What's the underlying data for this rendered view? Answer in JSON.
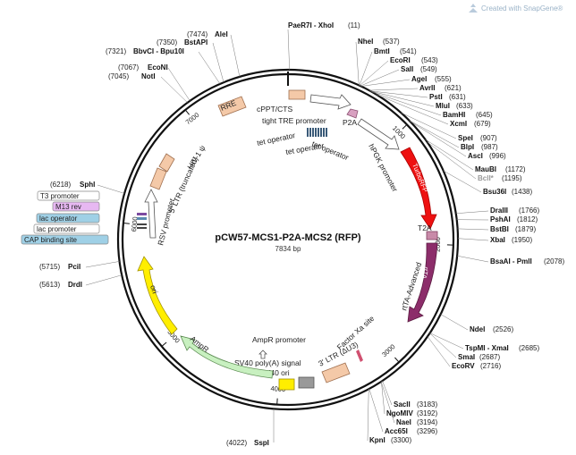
{
  "watermark": "Created with SnapGene®",
  "plasmid": {
    "name": "pCW57-MCS1-P2A-MCS2 (RFP)",
    "size_text": "7834 bp"
  },
  "ticks": [
    {
      "label": "1000",
      "pos": 1000
    },
    {
      "label": "2000",
      "pos": 2000
    },
    {
      "label": "3000",
      "pos": 3000
    },
    {
      "label": "4000",
      "pos": 4000
    },
    {
      "label": "5000",
      "pos": 5000
    },
    {
      "label": "6000",
      "pos": 6000
    },
    {
      "label": "7000",
      "pos": 7000
    }
  ],
  "features": [
    {
      "label": "cPPT/CTS",
      "color": "#f4c9a8"
    },
    {
      "label": "tight TRE promoter",
      "color": "#ffffff"
    },
    {
      "label": "tet operator",
      "color": "#3a5a78"
    },
    {
      "label": "tet operator",
      "color": "#3a5a78"
    },
    {
      "label": "tet operator",
      "color": "#3a5a78"
    },
    {
      "label": "P2A",
      "color": "#d8a0c0"
    },
    {
      "label": "hPGK promoter",
      "color": "#ffffff"
    },
    {
      "label": "TurboRFP",
      "color": "#ee1111"
    },
    {
      "label": "T2A",
      "color": "#c88aa8"
    },
    {
      "label": "rtTA-Advanced",
      "color": "#8c2d6a"
    },
    {
      "label": "Factor Xa site",
      "color": "#d05070"
    },
    {
      "label": "3' LTR (ΔU3)",
      "color": "#f4c9a8"
    },
    {
      "label": "SV40 ori",
      "color": "#999999"
    },
    {
      "label": "SV40 poly(A) signal",
      "color": "#ffee00"
    },
    {
      "label": "AmpR promoter",
      "color": "#ffffff"
    },
    {
      "label": "AmpR",
      "color": "#c8f0c0"
    },
    {
      "label": "ori",
      "color": "#ffee00"
    },
    {
      "label": "RSV promoter",
      "color": "#ffffff"
    },
    {
      "label": "5' LTR (truncated)",
      "color": "#f4c9a8"
    },
    {
      "label": "HIV-1 ψ",
      "color": "#f4c9a8"
    },
    {
      "label": "RRE",
      "color": "#f4c9a8"
    }
  ],
  "inner_texts": {
    "turbo": "TurboRFP",
    "rtta": "rtTA",
    "ori": "ori"
  },
  "sites": [
    {
      "name": "PaeR7I - XhoI",
      "pos": "(11)"
    },
    {
      "name": "NheI",
      "pos": "(537)"
    },
    {
      "name": "BmtI",
      "pos": "(541)"
    },
    {
      "name": "EcoRI",
      "pos": "(543)"
    },
    {
      "name": "SalI",
      "pos": "(549)"
    },
    {
      "name": "AgeI",
      "pos": "(555)"
    },
    {
      "name": "AvrII",
      "pos": "(621)"
    },
    {
      "name": "PstI",
      "pos": "(631)"
    },
    {
      "name": "MluI",
      "pos": "(633)"
    },
    {
      "name": "BamHI",
      "pos": "(645)"
    },
    {
      "name": "XcmI",
      "pos": "(679)"
    },
    {
      "name": "SpeI",
      "pos": "(907)"
    },
    {
      "name": "BlpI",
      "pos": "(987)"
    },
    {
      "name": "AscI",
      "pos": "(996)"
    },
    {
      "name": "MauBI",
      "pos": "(1172)"
    },
    {
      "name": "BclI*",
      "pos": "(1195)"
    },
    {
      "name": "Bsu36I",
      "pos": "(1438)"
    },
    {
      "name": "DraIII",
      "pos": "(1766)"
    },
    {
      "name": "PshAI",
      "pos": "(1812)"
    },
    {
      "name": "BstBI",
      "pos": "(1879)"
    },
    {
      "name": "XbaI",
      "pos": "(1950)"
    },
    {
      "name": "BsaAI - PmlI",
      "pos": "(2078)"
    },
    {
      "name": "NdeI",
      "pos": "(2526)"
    },
    {
      "name": "TspMI - XmaI",
      "pos": "(2685)"
    },
    {
      "name": "SmaI",
      "pos": "(2687)"
    },
    {
      "name": "EcoRV",
      "pos": "(2716)"
    },
    {
      "name": "SacII",
      "pos": "(3183)"
    },
    {
      "name": "NgoMIV",
      "pos": "(3192)"
    },
    {
      "name": "NaeI",
      "pos": "(3194)"
    },
    {
      "name": "Acc65I",
      "pos": "(3296)"
    },
    {
      "name": "KpnI",
      "pos": "(3300)"
    },
    {
      "name": "SspI",
      "pos": "(4022)"
    },
    {
      "name": "DrdI",
      "pos": "(5613)"
    },
    {
      "name": "PciI",
      "pos": "(5715)"
    },
    {
      "name": "SphI",
      "pos": "(6218)"
    },
    {
      "name": "NotI",
      "pos": "(7045)"
    },
    {
      "name": "EcoNI",
      "pos": "(7067)"
    },
    {
      "name": "BbvCI - Bpu10I",
      "pos": "(7321)"
    },
    {
      "name": "BstAPI",
      "pos": "(7350)"
    },
    {
      "name": "AleI",
      "pos": "(7474)"
    }
  ],
  "boxed_labels": [
    {
      "text": "T3 promoter",
      "bg": "#ffffff"
    },
    {
      "text": "M13 rev",
      "bg": "#e7b8f2"
    },
    {
      "text": "lac operator",
      "bg": "#9fd0e6"
    },
    {
      "text": "lac promoter",
      "bg": "#ffffff"
    },
    {
      "text": "CAP binding site",
      "bg": "#9fd0e6"
    }
  ]
}
